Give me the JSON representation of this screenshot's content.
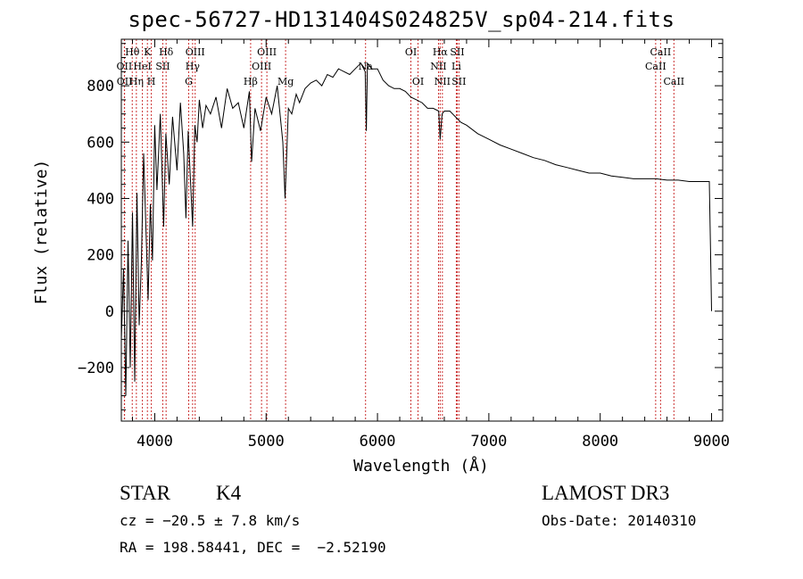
{
  "chart_data": {
    "type": "line",
    "title": "spec-56727-HD131404S024825V_sp04-214.fits",
    "xlabel": "Wavelength (Å)",
    "ylabel": "Flux (relative)",
    "xlim": [
      3700,
      9100
    ],
    "ylim": [
      -390,
      965
    ],
    "xticks": [
      4000,
      5000,
      6000,
      7000,
      8000,
      9000
    ],
    "xtick_labels": [
      "4000",
      "5000",
      "6000",
      "7000",
      "8000",
      "9000"
    ],
    "yticks": [
      -200,
      0,
      200,
      400,
      600,
      800
    ],
    "ytick_labels": [
      "−200",
      "0",
      "200",
      "400",
      "600",
      "800"
    ],
    "series": [
      {
        "name": "flux",
        "x": [
          3700,
          3720,
          3740,
          3760,
          3780,
          3800,
          3820,
          3840,
          3860,
          3880,
          3900,
          3920,
          3940,
          3960,
          3980,
          4000,
          4020,
          4050,
          4080,
          4100,
          4130,
          4160,
          4200,
          4230,
          4260,
          4280,
          4300,
          4320,
          4340,
          4360,
          4380,
          4400,
          4430,
          4460,
          4500,
          4550,
          4600,
          4650,
          4700,
          4750,
          4800,
          4850,
          4870,
          4900,
          4950,
          5000,
          5050,
          5100,
          5150,
          5170,
          5185,
          5200,
          5230,
          5270,
          5300,
          5350,
          5400,
          5450,
          5500,
          5550,
          5600,
          5650,
          5700,
          5750,
          5800,
          5850,
          5890,
          5900,
          5910,
          5950,
          6000,
          6050,
          6100,
          6150,
          6200,
          6250,
          6300,
          6350,
          6400,
          6450,
          6500,
          6550,
          6563,
          6580,
          6600,
          6650,
          6700,
          6750,
          6800,
          6900,
          7000,
          7100,
          7200,
          7300,
          7400,
          7500,
          7600,
          7700,
          7800,
          7900,
          8000,
          8100,
          8200,
          8300,
          8400,
          8500,
          8600,
          8700,
          8800,
          8900,
          8980,
          8995,
          9000
        ],
        "values": [
          -100,
          150,
          -300,
          250,
          -200,
          350,
          -250,
          420,
          -50,
          180,
          560,
          300,
          40,
          380,
          180,
          660,
          430,
          700,
          300,
          630,
          450,
          690,
          500,
          740,
          560,
          330,
          640,
          470,
          300,
          660,
          600,
          750,
          650,
          730,
          700,
          760,
          650,
          790,
          720,
          740,
          650,
          780,
          530,
          720,
          640,
          760,
          700,
          800,
          600,
          400,
          560,
          720,
          700,
          770,
          740,
          790,
          810,
          820,
          800,
          840,
          830,
          860,
          850,
          840,
          860,
          880,
          850,
          640,
          880,
          860,
          860,
          820,
          800,
          790,
          790,
          780,
          760,
          750,
          740,
          720,
          720,
          710,
          610,
          700,
          710,
          710,
          690,
          670,
          660,
          630,
          610,
          590,
          575,
          560,
          545,
          535,
          520,
          510,
          500,
          490,
          490,
          480,
          475,
          470,
          470,
          470,
          465,
          465,
          460,
          460,
          460,
          120,
          0
        ]
      }
    ],
    "lines": [
      {
        "name": "Hθ",
        "wavelength": 3798,
        "row": 1
      },
      {
        "name": "OII",
        "wavelength": 3727,
        "row": 2
      },
      {
        "name": "OII",
        "wavelength": 3729,
        "row": 3
      },
      {
        "name": "HeI",
        "wavelength": 3889,
        "row": 2
      },
      {
        "name": "K",
        "wavelength": 3934,
        "row": 1
      },
      {
        "name": "Hη",
        "wavelength": 3835,
        "row": 3
      },
      {
        "name": "H",
        "wavelength": 3969,
        "row": 3
      },
      {
        "name": "SII",
        "wavelength": 4072,
        "row": 2
      },
      {
        "name": "Hδ",
        "wavelength": 4102,
        "row": 1
      },
      {
        "name": "OIII",
        "wavelength": 4363,
        "row": 1
      },
      {
        "name": "Hγ",
        "wavelength": 4340,
        "row": 2
      },
      {
        "name": "G",
        "wavelength": 4305,
        "row": 3
      },
      {
        "name": "Hβ",
        "wavelength": 4861,
        "row": 3
      },
      {
        "name": "OIII",
        "wavelength": 5007,
        "row": 1
      },
      {
        "name": "OIII",
        "wavelength": 4959,
        "row": 2
      },
      {
        "name": "Mg",
        "wavelength": 5175,
        "row": 3
      },
      {
        "name": "Na",
        "wavelength": 5893,
        "row": 2
      },
      {
        "name": "OI",
        "wavelength": 6300,
        "row": 1
      },
      {
        "name": "OI",
        "wavelength": 6364,
        "row": 3
      },
      {
        "name": "Hα",
        "wavelength": 6563,
        "row": 1
      },
      {
        "name": "SII",
        "wavelength": 6716,
        "row": 1
      },
      {
        "name": "NII",
        "wavelength": 6548,
        "row": 2
      },
      {
        "name": "Li",
        "wavelength": 6708,
        "row": 2
      },
      {
        "name": "NII",
        "wavelength": 6583,
        "row": 3
      },
      {
        "name": "SII",
        "wavelength": 6731,
        "row": 3
      },
      {
        "name": "CaII",
        "wavelength": 8542,
        "row": 1
      },
      {
        "name": "CaII",
        "wavelength": 8498,
        "row": 2
      },
      {
        "name": "CaII",
        "wavelength": 8662,
        "row": 3
      }
    ]
  },
  "info": {
    "class_label": "STAR",
    "subclass": "K4",
    "cz": "cz = −20.5 ± 7.8 km/s",
    "coords": "RA = 198.58441, DEC =  −2.52190",
    "survey": "LAMOST DR3",
    "obs_date": "Obs-Date: 20140310"
  },
  "colors": {
    "axis": "#000000",
    "spectrum": "#000000",
    "line_marker": "#cc3333"
  }
}
